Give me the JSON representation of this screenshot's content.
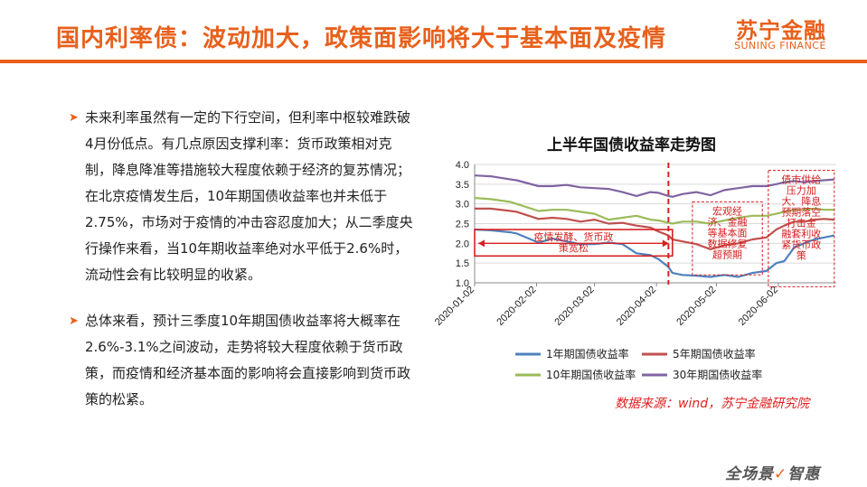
{
  "header": {
    "title": "国内利率债：波动加大，政策面影响将大于基本面及疫情",
    "logo_cn": "苏宁金融",
    "logo_en": "SUNING FINANCE",
    "accent_color": "#e8601c"
  },
  "body_text": {
    "paragraphs": [
      "未来利率虽然有一定的下行空间，但利率中枢较难跌破4月份低点。有几点原因支撑利率：货币政策相对克制，降息降准等措施较大程度依赖于经济的复苏情况；在北京疫情发生后，10年期国债收益率也并未低于2.75%，市场对于疫情的冲击容忍度加大；从二季度央行操作来看，当10年期收益率绝对水平低于2.6%时，流动性会有比较明显的收紧。",
      "总体来看，预计三季度10年期国债收益率将大概率在2.6%-3.1%之间波动，走势将较大程度依赖于货币政策，而疫情和经济基本面的影响将会直接影响到货币政策的松紧。"
    ]
  },
  "chart_data": {
    "type": "line",
    "title": "上半年国债收益率走势图",
    "ylim": [
      1.0,
      4.0
    ],
    "yticks": [
      "1.0",
      "1.5",
      "2.0",
      "2.5",
      "3.0",
      "3.5",
      "4.0"
    ],
    "xticks": [
      "2020-01-02",
      "2020-02-02",
      "2020-03-02",
      "2020-04-02",
      "2020-05-02",
      "2020-06-02"
    ],
    "grid": true,
    "legend_position": "bottom",
    "series": [
      {
        "name": "1年期国债收益率",
        "color": "#4f81bd",
        "points": [
          [
            "2020-01-02",
            2.35
          ],
          [
            "2020-01-10",
            2.33
          ],
          [
            "2020-01-20",
            2.28
          ],
          [
            "2020-01-23",
            2.25
          ],
          [
            "2020-02-03",
            2.02
          ],
          [
            "2020-02-10",
            2.12
          ],
          [
            "2020-02-17",
            2.05
          ],
          [
            "2020-02-24",
            1.98
          ],
          [
            "2020-03-02",
            1.98
          ],
          [
            "2020-03-09",
            2.02
          ],
          [
            "2020-03-16",
            1.98
          ],
          [
            "2020-03-23",
            1.75
          ],
          [
            "2020-03-30",
            1.7
          ],
          [
            "2020-04-03",
            1.6
          ],
          [
            "2020-04-08",
            1.4
          ],
          [
            "2020-04-10",
            1.25
          ],
          [
            "2020-04-15",
            1.2
          ],
          [
            "2020-04-22",
            1.18
          ],
          [
            "2020-04-29",
            1.15
          ],
          [
            "2020-05-06",
            1.2
          ],
          [
            "2020-05-13",
            1.15
          ],
          [
            "2020-05-20",
            1.25
          ],
          [
            "2020-05-27",
            1.3
          ],
          [
            "2020-06-01",
            1.5
          ],
          [
            "2020-06-05",
            1.55
          ],
          [
            "2020-06-10",
            1.9
          ],
          [
            "2020-06-15",
            2.0
          ],
          [
            "2020-06-20",
            2.1
          ],
          [
            "2020-06-25",
            2.15
          ],
          [
            "2020-06-30",
            2.2
          ]
        ]
      },
      {
        "name": "5年期国债收益率",
        "color": "#c0504d",
        "points": [
          [
            "2020-01-02",
            2.88
          ],
          [
            "2020-01-10",
            2.88
          ],
          [
            "2020-01-20",
            2.82
          ],
          [
            "2020-01-23",
            2.8
          ],
          [
            "2020-02-03",
            2.62
          ],
          [
            "2020-02-10",
            2.65
          ],
          [
            "2020-02-17",
            2.62
          ],
          [
            "2020-02-24",
            2.55
          ],
          [
            "2020-03-02",
            2.6
          ],
          [
            "2020-03-09",
            2.5
          ],
          [
            "2020-03-16",
            2.52
          ],
          [
            "2020-03-23",
            2.45
          ],
          [
            "2020-03-30",
            2.4
          ],
          [
            "2020-04-03",
            2.3
          ],
          [
            "2020-04-08",
            2.2
          ],
          [
            "2020-04-10",
            2.1
          ],
          [
            "2020-04-15",
            2.05
          ],
          [
            "2020-04-22",
            1.98
          ],
          [
            "2020-04-29",
            1.85
          ],
          [
            "2020-05-06",
            1.95
          ],
          [
            "2020-05-13",
            2.0
          ],
          [
            "2020-05-20",
            2.1
          ],
          [
            "2020-05-27",
            2.15
          ],
          [
            "2020-06-01",
            2.35
          ],
          [
            "2020-06-05",
            2.45
          ],
          [
            "2020-06-10",
            2.55
          ],
          [
            "2020-06-15",
            2.55
          ],
          [
            "2020-06-20",
            2.6
          ],
          [
            "2020-06-25",
            2.62
          ],
          [
            "2020-06-30",
            2.6
          ]
        ]
      },
      {
        "name": "10年期国债收益率",
        "color": "#9bbb59",
        "points": [
          [
            "2020-01-02",
            3.15
          ],
          [
            "2020-01-10",
            3.12
          ],
          [
            "2020-01-20",
            3.05
          ],
          [
            "2020-01-23",
            3.0
          ],
          [
            "2020-02-03",
            2.82
          ],
          [
            "2020-02-10",
            2.85
          ],
          [
            "2020-02-17",
            2.85
          ],
          [
            "2020-02-24",
            2.8
          ],
          [
            "2020-03-02",
            2.75
          ],
          [
            "2020-03-09",
            2.6
          ],
          [
            "2020-03-16",
            2.65
          ],
          [
            "2020-03-23",
            2.7
          ],
          [
            "2020-03-30",
            2.6
          ],
          [
            "2020-04-03",
            2.58
          ],
          [
            "2020-04-08",
            2.52
          ],
          [
            "2020-04-10",
            2.5
          ],
          [
            "2020-04-15",
            2.55
          ],
          [
            "2020-04-22",
            2.55
          ],
          [
            "2020-04-29",
            2.5
          ],
          [
            "2020-05-06",
            2.58
          ],
          [
            "2020-05-13",
            2.65
          ],
          [
            "2020-05-20",
            2.7
          ],
          [
            "2020-05-27",
            2.7
          ],
          [
            "2020-06-01",
            2.75
          ],
          [
            "2020-06-05",
            2.8
          ],
          [
            "2020-06-10",
            2.85
          ],
          [
            "2020-06-15",
            2.85
          ],
          [
            "2020-06-20",
            2.88
          ],
          [
            "2020-06-25",
            2.85
          ],
          [
            "2020-06-30",
            2.85
          ]
        ]
      },
      {
        "name": "30年期国债收益率",
        "color": "#8064a2",
        "points": [
          [
            "2020-01-02",
            3.72
          ],
          [
            "2020-01-10",
            3.7
          ],
          [
            "2020-01-20",
            3.62
          ],
          [
            "2020-01-23",
            3.6
          ],
          [
            "2020-02-03",
            3.45
          ],
          [
            "2020-02-10",
            3.45
          ],
          [
            "2020-02-17",
            3.48
          ],
          [
            "2020-02-24",
            3.42
          ],
          [
            "2020-03-02",
            3.4
          ],
          [
            "2020-03-09",
            3.38
          ],
          [
            "2020-03-16",
            3.3
          ],
          [
            "2020-03-23",
            3.2
          ],
          [
            "2020-03-30",
            3.3
          ],
          [
            "2020-04-03",
            3.28
          ],
          [
            "2020-04-08",
            3.2
          ],
          [
            "2020-04-10",
            3.18
          ],
          [
            "2020-04-15",
            3.25
          ],
          [
            "2020-04-22",
            3.3
          ],
          [
            "2020-04-29",
            3.22
          ],
          [
            "2020-05-06",
            3.35
          ],
          [
            "2020-05-13",
            3.4
          ],
          [
            "2020-05-20",
            3.45
          ],
          [
            "2020-05-27",
            3.45
          ],
          [
            "2020-06-01",
            3.5
          ],
          [
            "2020-06-05",
            3.55
          ],
          [
            "2020-06-10",
            3.58
          ],
          [
            "2020-06-15",
            3.55
          ],
          [
            "2020-06-20",
            3.58
          ],
          [
            "2020-06-25",
            3.6
          ],
          [
            "2020-06-30",
            3.62
          ]
        ]
      }
    ],
    "annotations": [
      {
        "name": "annot-epidemic",
        "text_lines": [
          "疫情发酵、货币政",
          "策宽松"
        ],
        "x_from": "2020-01-02",
        "x_to": "2020-04-10",
        "y_top": 2.35,
        "y_bottom": 1.68,
        "style": "solid-box"
      },
      {
        "name": "annot-macro",
        "text_lines": [
          "宏观经",
          "济、金融",
          "等基本面",
          "数据修复",
          "超预期"
        ],
        "x_from": "2020-04-20",
        "x_to": "2020-05-25",
        "y_top": 3.05,
        "y_bottom": 1.2,
        "style": "dashed-box"
      },
      {
        "name": "annot-policy",
        "text_lines": [
          "债市供给",
          "压力加",
          "大、降息",
          "预期落空",
          "打击金",
          "融套利收",
          "紧货币政",
          "策"
        ],
        "x_from": "2020-05-28",
        "x_to": "2020-06-30",
        "y_top": 3.85,
        "y_bottom": 0.9,
        "style": "dashed-box"
      }
    ],
    "divider_date": "2020-04-08"
  },
  "source_note": "数据来源：wind，苏宁金融研究院",
  "footer_logo": {
    "left": "全场景",
    "right": "智惠"
  }
}
